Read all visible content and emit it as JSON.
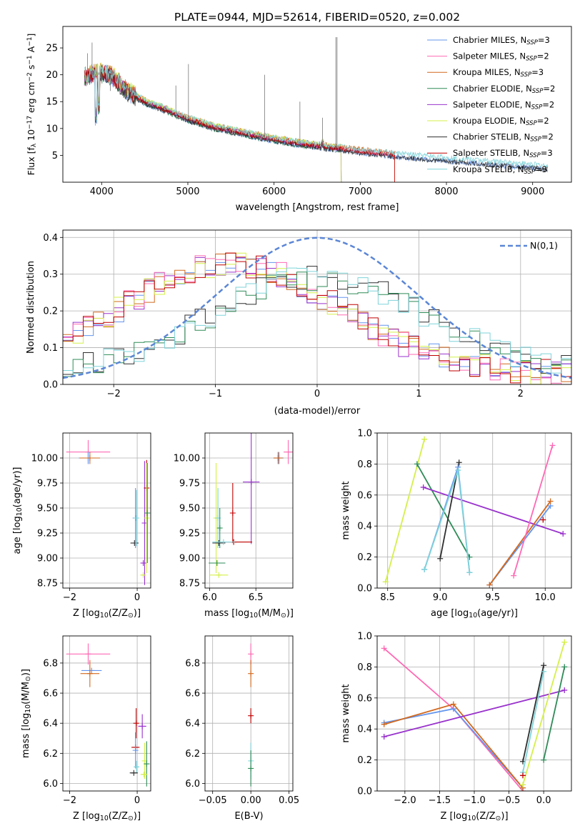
{
  "figure_title": "PLATE=0944, MJD=52614, FIBERID=0520, z=0.002",
  "chart_data": [
    {
      "type": "line",
      "panel": "spectrum",
      "xlabel": "wavelength [Angstrom, rest frame]",
      "ylabel": "Flux [f$_\\lambda$ 10$^{-17}$ erg cm$^{-2}$ s$^{-1}$ A$^{-1}$]",
      "ylabel_parts": {
        "main": "Flux [f",
        "sub1": "λ",
        "mid": "10",
        "sup1": "−17",
        "rest1": " erg cm",
        "sup2": "−2",
        "rest2": " s",
        "sup3": "−1",
        "rest3": " A",
        "sup4": "−1",
        "end": "]"
      },
      "xlim": [
        3550,
        9450
      ],
      "ylim": [
        0,
        29
      ],
      "xticks": [
        4000,
        5000,
        6000,
        7000,
        8000,
        9000
      ],
      "yticks": [
        5,
        10,
        15,
        20,
        25
      ],
      "grid": false,
      "legend_position": "top-right",
      "continuum_anchors": {
        "x": [
          3800,
          3950,
          4100,
          4300,
          4500,
          4700,
          5000,
          5300,
          5600,
          6000,
          6300,
          6600,
          7000,
          7400,
          7800,
          8200,
          8600,
          9000,
          9180
        ],
        "y": [
          19.5,
          20.5,
          20.0,
          17.0,
          15.0,
          13.8,
          11.8,
          10.3,
          9.3,
          8.0,
          7.2,
          6.6,
          5.8,
          5.1,
          4.5,
          4.0,
          3.5,
          3.0,
          2.7
        ]
      },
      "series": [
        {
          "name": "Chabrier MILES",
          "nssp": "3",
          "color": "#6495ed",
          "cut": 9180
        },
        {
          "name": "Salpeter MILES",
          "nssp": "2",
          "color": "#ff69b4",
          "cut": 7400
        },
        {
          "name": "Kroupa MILES",
          "nssp": "3",
          "color": "#d2691e",
          "cut": 7400
        },
        {
          "name": "Chabrier ELODIE",
          "nssp": "2",
          "color": "#2e8b57",
          "cut": 6780
        },
        {
          "name": "Salpeter ELODIE",
          "nssp": "2",
          "color": "#9932cc",
          "cut": 6780
        },
        {
          "name": "Kroupa ELODIE",
          "nssp": "2",
          "color": "#d4f04a",
          "cut": 6780
        },
        {
          "name": "Chabrier STELIB",
          "nssp": "2",
          "color": "#2f2f2f",
          "cut": 9180
        },
        {
          "name": "Salpeter STELIB",
          "nssp": "3",
          "color": "#c00000",
          "cut": 7400
        },
        {
          "name": "Kroupa STELIB",
          "nssp": "3",
          "color": "#7fd3d9",
          "cut": 9180
        }
      ]
    },
    {
      "type": "histogram",
      "panel": "residuals",
      "xlabel": "(data-model)/error",
      "ylabel": "Normed distribution",
      "xlim": [
        -2.5,
        2.5
      ],
      "ylim": [
        0,
        0.42
      ],
      "xticks": [
        -2,
        -1,
        0,
        1,
        2
      ],
      "yticks": [
        0.0,
        0.1,
        0.2,
        0.3,
        0.4
      ],
      "grid": true,
      "legend_position": "top-right",
      "gauss_label": "N(0,1)",
      "gauss_color": "#5b86d6",
      "group_a": {
        "colors": [
          "#6495ed",
          "#d2691e",
          "#9932cc",
          "#ff69b4",
          "#d4f04a",
          "#c00000"
        ],
        "peak": 0.3,
        "center": -0.85,
        "sigma": 1.05
      },
      "group_b": {
        "colors": [
          "#2f2f2f",
          "#2e8b57",
          "#7fd3d9"
        ],
        "peak": 0.26,
        "center": 0.0,
        "sigma": 1.05
      }
    },
    {
      "type": "errorbar",
      "panel": "age-vs-Z",
      "xlabel": "Z [log$_{10}$(Z/Z$_\\odot$)]",
      "ylabel": "age  [log$_{10}$(age/yr)]",
      "xlim": [
        -2.2,
        0.4
      ],
      "ylim": [
        8.7,
        10.25
      ],
      "xticks": [
        -2,
        0
      ],
      "yticks": [
        8.75,
        9.0,
        9.25,
        9.5,
        9.75,
        10.0
      ],
      "grid": true,
      "points": [
        {
          "x": -1.45,
          "y": 10.06,
          "xe": 0.65,
          "ye": 0.12,
          "c": "#ff69b4"
        },
        {
          "x": -1.45,
          "y": 10.0,
          "xe": 0.28,
          "ye": 0.06,
          "c": "#6495ed"
        },
        {
          "x": -1.4,
          "y": 10.0,
          "xe": 0.3,
          "ye": 0.06,
          "c": "#d2691e"
        },
        {
          "x": -0.08,
          "y": 9.15,
          "xe": 0.12,
          "ye": 0.0,
          "c": "#2f2f2f"
        },
        {
          "x": -0.05,
          "y": 9.4,
          "xe": 0.02,
          "ye": 0.3,
          "c": "#6495ed"
        },
        {
          "x": -0.02,
          "y": 9.4,
          "xe": 0.02,
          "ye": 0.28,
          "c": "#7fd3d9"
        },
        {
          "x": 0.22,
          "y": 9.35,
          "xe": 0.02,
          "ye": 0.62,
          "c": "#9932cc"
        },
        {
          "x": 0.28,
          "y": 9.7,
          "xe": 0.03,
          "ye": 0.28,
          "c": "#c00000"
        },
        {
          "x": 0.28,
          "y": 9.4,
          "xe": 0.02,
          "ye": 0.55,
          "c": "#d4f04a"
        },
        {
          "x": 0.3,
          "y": 9.45,
          "xe": 0.02,
          "ye": 0.5,
          "c": "#2e8b57"
        },
        {
          "x": 0.18,
          "y": 8.95,
          "xe": 0.08,
          "ye": 0.0,
          "c": "#9932cc"
        },
        {
          "x": 0.18,
          "y": 8.83,
          "xe": 0.05,
          "ye": 0.0,
          "c": "#d4f04a"
        }
      ]
    },
    {
      "type": "errorbar",
      "panel": "age-vs-mass",
      "xlabel": "mass [log$_{10}$(M/M$_\\odot$)]",
      "ylabel": "",
      "xlim": [
        5.95,
        6.9
      ],
      "ylim": [
        8.7,
        10.25
      ],
      "xticks": [
        6.0,
        6.5
      ],
      "yticks": [
        8.75,
        9.0,
        9.25,
        9.5,
        9.75,
        10.0
      ],
      "grid": true,
      "points": [
        {
          "x": 6.85,
          "y": 10.06,
          "xe": 0.05,
          "ye": 0.12,
          "c": "#ff69b4"
        },
        {
          "x": 6.75,
          "y": 10.0,
          "xe": 0.05,
          "ye": 0.06,
          "c": "#6495ed"
        },
        {
          "x": 6.74,
          "y": 10.0,
          "xe": 0.05,
          "ye": 0.06,
          "c": "#d2691e"
        },
        {
          "x": 6.45,
          "y": 9.76,
          "xe": 0.09,
          "ye": 0.62,
          "c": "#9932cc"
        },
        {
          "x": 6.25,
          "y": 9.45,
          "xe": 0.0,
          "ye": 0.3,
          "c": "#c00000"
        },
        {
          "x": 6.26,
          "y": 9.16,
          "xe": 0.2,
          "ye": 0.0,
          "c": "#c00000"
        },
        {
          "x": 6.07,
          "y": 9.4,
          "xe": 0.02,
          "ye": 0.55,
          "c": "#d4f04a"
        },
        {
          "x": 6.09,
          "y": 9.4,
          "xe": 0.02,
          "ye": 0.3,
          "c": "#7fd3d9"
        },
        {
          "x": 6.11,
          "y": 9.3,
          "xe": 0.02,
          "ye": 0.2,
          "c": "#2e8b57"
        },
        {
          "x": 6.1,
          "y": 9.15,
          "xe": 0.07,
          "ye": 0.0,
          "c": "#2f2f2f"
        },
        {
          "x": 6.15,
          "y": 9.16,
          "xe": 0.12,
          "ye": 0.0,
          "c": "#7fd3d9"
        },
        {
          "x": 6.08,
          "y": 8.95,
          "xe": 0.09,
          "ye": 0.0,
          "c": "#2e8b57"
        },
        {
          "x": 6.1,
          "y": 8.83,
          "xe": 0.1,
          "ye": 0.0,
          "c": "#d4f04a"
        }
      ]
    },
    {
      "type": "line",
      "panel": "weight-vs-age",
      "xlabel": "age  [log$_{10}$(age/yr)]",
      "ylabel": "mass weight",
      "xlim": [
        8.4,
        10.25
      ],
      "ylim": [
        0,
        1
      ],
      "xticks": [
        8.5,
        9.0,
        9.5,
        10.0
      ],
      "yticks": [
        0.0,
        0.2,
        0.4,
        0.6,
        0.8,
        1.0
      ],
      "grid": true,
      "series": [
        {
          "c": "#d4f04a",
          "x": [
            8.48,
            8.85
          ],
          "y": [
            0.04,
            0.96
          ]
        },
        {
          "c": "#2e8b57",
          "x": [
            8.78,
            9.28
          ],
          "y": [
            0.8,
            0.2
          ]
        },
        {
          "c": "#9932cc",
          "x": [
            8.84,
            10.17
          ],
          "y": [
            0.65,
            0.35
          ]
        },
        {
          "c": "#2f2f2f",
          "x": [
            9.0,
            9.18
          ],
          "y": [
            0.19,
            0.81
          ]
        },
        {
          "c": "#6495ed",
          "x": [
            8.85,
            9.17,
            9.28
          ],
          "y": [
            0.12,
            0.78,
            0.1
          ]
        },
        {
          "c": "#7fd3d9",
          "x": [
            8.85,
            9.17,
            9.28
          ],
          "y": [
            0.12,
            0.76,
            0.1
          ]
        },
        {
          "c": "#6495ed",
          "x": [
            9.47,
            10.05
          ],
          "y": [
            0.02,
            0.53
          ]
        },
        {
          "c": "#d2691e",
          "x": [
            9.47,
            10.05
          ],
          "y": [
            0.02,
            0.56
          ]
        },
        {
          "c": "#ff69b4",
          "x": [
            9.7,
            10.07
          ],
          "y": [
            0.08,
            0.92
          ]
        },
        {
          "c": "#c00000",
          "x": [
            9.98
          ],
          "y": [
            0.44
          ]
        }
      ]
    },
    {
      "type": "errorbar",
      "panel": "mass-vs-Z",
      "xlabel": "Z [log$_{10}$(Z/Z$_\\odot$)]",
      "ylabel": "mass [log$_{10}$(M/M$_\\odot$)]",
      "xlim": [
        -2.2,
        0.4
      ],
      "ylim": [
        5.95,
        6.98
      ],
      "xticks": [
        -2,
        0
      ],
      "yticks": [
        6.0,
        6.2,
        6.4,
        6.6,
        6.8
      ],
      "grid": true,
      "points": [
        {
          "x": -1.45,
          "y": 6.86,
          "xe": 0.65,
          "ye": 0.07,
          "c": "#ff69b4"
        },
        {
          "x": -1.35,
          "y": 6.75,
          "xe": 0.3,
          "ye": 0.0,
          "c": "#6495ed"
        },
        {
          "x": -1.4,
          "y": 6.73,
          "xe": 0.28,
          "ye": 0.09,
          "c": "#d2691e"
        },
        {
          "x": -0.05,
          "y": 6.24,
          "xe": 0.12,
          "ye": 0.0,
          "c": "#c00000"
        },
        {
          "x": -0.03,
          "y": 6.4,
          "xe": 0.0,
          "ye": 0.1,
          "c": "#c00000"
        },
        {
          "x": 0.15,
          "y": 6.38,
          "xe": 0.12,
          "ye": 0.08,
          "c": "#9932cc"
        },
        {
          "x": -0.05,
          "y": 6.22,
          "xe": 0.02,
          "ye": 0.12,
          "c": "#6495ed"
        },
        {
          "x": -0.02,
          "y": 6.11,
          "xe": 0.07,
          "ye": 0.04,
          "c": "#7fd3d9"
        },
        {
          "x": -0.1,
          "y": 6.07,
          "xe": 0.12,
          "ye": 0.0,
          "c": "#2f2f2f"
        },
        {
          "x": 0.22,
          "y": 6.15,
          "xe": 0.02,
          "ye": 0.12,
          "c": "#d4f04a"
        },
        {
          "x": 0.28,
          "y": 6.13,
          "xe": 0.02,
          "ye": 0.15,
          "c": "#2e8b57"
        },
        {
          "x": 0.2,
          "y": 6.06,
          "xe": 0.1,
          "ye": 0.0,
          "c": "#d4f04a"
        }
      ]
    },
    {
      "type": "errorbar",
      "panel": "mass-vs-EBV",
      "xlabel": "E(B-V)",
      "ylabel": "",
      "xlim": [
        -0.06,
        0.055
      ],
      "ylim": [
        5.95,
        6.98
      ],
      "xticks": [
        -0.05,
        0.0,
        0.05
      ],
      "yticks": [
        6.0,
        6.2,
        6.4,
        6.6,
        6.8
      ],
      "grid": true,
      "points": [
        {
          "x": 0.0,
          "y": 6.86,
          "xe": 0.0,
          "ye": 0.07,
          "c": "#ff69b4"
        },
        {
          "x": 0.0,
          "y": 6.73,
          "xe": 0.0,
          "ye": 0.09,
          "c": "#d2691e"
        },
        {
          "x": 0.0,
          "y": 6.45,
          "xe": 0.0,
          "ye": 0.05,
          "c": "#c00000"
        },
        {
          "x": 0.0,
          "y": 6.15,
          "xe": 0.0,
          "ye": 0.12,
          "c": "#7fd3d9"
        },
        {
          "x": 0.0,
          "y": 6.1,
          "xe": 0.0,
          "ye": 0.12,
          "c": "#2e8b57"
        }
      ]
    },
    {
      "type": "line",
      "panel": "weight-vs-Z",
      "xlabel": "Z [log$_{10}$(Z/Z$_\\odot$)]",
      "ylabel": "mass weight",
      "xlim": [
        -2.4,
        0.4
      ],
      "ylim": [
        0,
        1
      ],
      "xticks": [
        -2.0,
        -1.5,
        -1.0,
        -0.5,
        0.0
      ],
      "yticks": [
        0.0,
        0.2,
        0.4,
        0.6,
        0.8,
        1.0
      ],
      "grid": true,
      "series": [
        {
          "c": "#ff69b4",
          "x": [
            -2.3,
            -1.3,
            -0.3
          ],
          "y": [
            0.92,
            0.53,
            0.0
          ]
        },
        {
          "c": "#6495ed",
          "x": [
            -2.3,
            -1.3,
            -0.3
          ],
          "y": [
            0.44,
            0.53,
            0.02
          ]
        },
        {
          "c": "#d2691e",
          "x": [
            -2.3,
            -1.3,
            -0.3
          ],
          "y": [
            0.43,
            0.56,
            0.02
          ]
        },
        {
          "c": "#9932cc",
          "x": [
            -2.3,
            0.3
          ],
          "y": [
            0.35,
            0.65
          ]
        },
        {
          "c": "#2f2f2f",
          "x": [
            -0.3,
            0.0
          ],
          "y": [
            0.19,
            0.81
          ]
        },
        {
          "c": "#7fd3d9",
          "x": [
            -0.3,
            0.0
          ],
          "y": [
            0.12,
            0.77
          ]
        },
        {
          "c": "#2e8b57",
          "x": [
            0.0,
            0.3
          ],
          "y": [
            0.2,
            0.8
          ]
        },
        {
          "c": "#d4f04a",
          "x": [
            -0.3,
            0.3
          ],
          "y": [
            0.04,
            0.96
          ]
        },
        {
          "c": "#c00000",
          "x": [
            -0.3
          ],
          "y": [
            0.1
          ]
        }
      ]
    }
  ]
}
